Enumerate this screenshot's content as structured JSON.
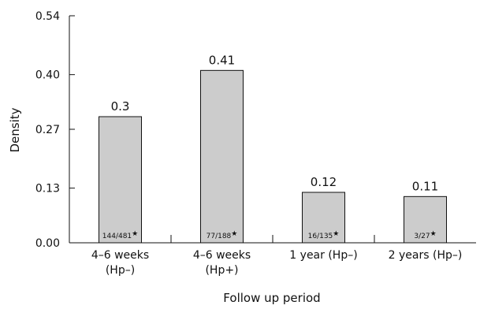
{
  "chart_data": {
    "type": "bar",
    "ylabel": "Density",
    "xlabel": "Follow up period",
    "ylim": [
      0,
      0.54
    ],
    "yticks": [
      "0.00",
      "0.13",
      "0.27",
      "0.40",
      "0.54"
    ],
    "ytick_values": [
      0,
      0.13,
      0.27,
      0.4,
      0.54
    ],
    "categories": [
      [
        "4–6 weeks",
        "(Hp–)"
      ],
      [
        "4–6 weeks",
        "(Hp+)"
      ],
      [
        "1 year (Hp–)"
      ],
      [
        "2 years (Hp–)"
      ]
    ],
    "values": [
      0.3,
      0.41,
      0.12,
      0.11
    ],
    "value_labels": [
      "0.3",
      "0.41",
      "0.12",
      "0.11"
    ],
    "counts": [
      "144/481",
      "77/188",
      "16/135",
      "3/27"
    ],
    "count_marker": "★",
    "bar_color": "#cccccc",
    "grid": false
  }
}
